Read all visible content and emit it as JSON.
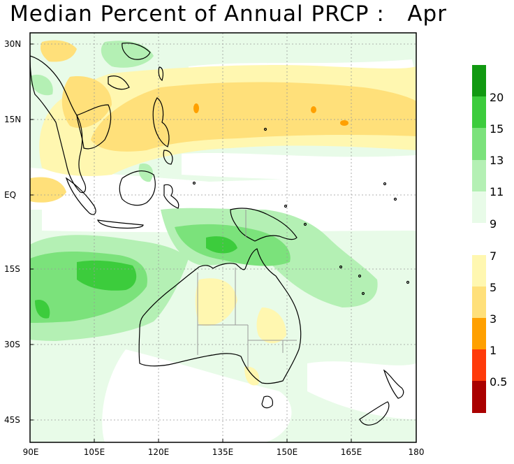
{
  "title": "Median Percent of Annual PRCP :   Apr",
  "latitude_labels": [
    "30N",
    "15N",
    "EQ",
    "15S",
    "30S",
    "45S"
  ],
  "longitude_labels": [
    "90E",
    "105E",
    "120E",
    "135E",
    "150E",
    "165E",
    "180"
  ],
  "legend": {
    "upper_labels": [
      "20",
      "15",
      "13",
      "11",
      "9"
    ],
    "lower_labels": [
      "7",
      "5",
      "3",
      "1",
      "0.5"
    ],
    "colors": {
      "gt20": "#119911",
      "15_20": "#3ccc3c",
      "13_15": "#7be27b",
      "11_13": "#b4f0b4",
      "9_11": "#e8fbe8",
      "5_7": "#fff7b0",
      "3_5": "#ffe07a",
      "1_3": "#ffa000",
      "0.5_1": "#ff3a0a",
      "lt0.5": "#aa0000"
    }
  }
}
